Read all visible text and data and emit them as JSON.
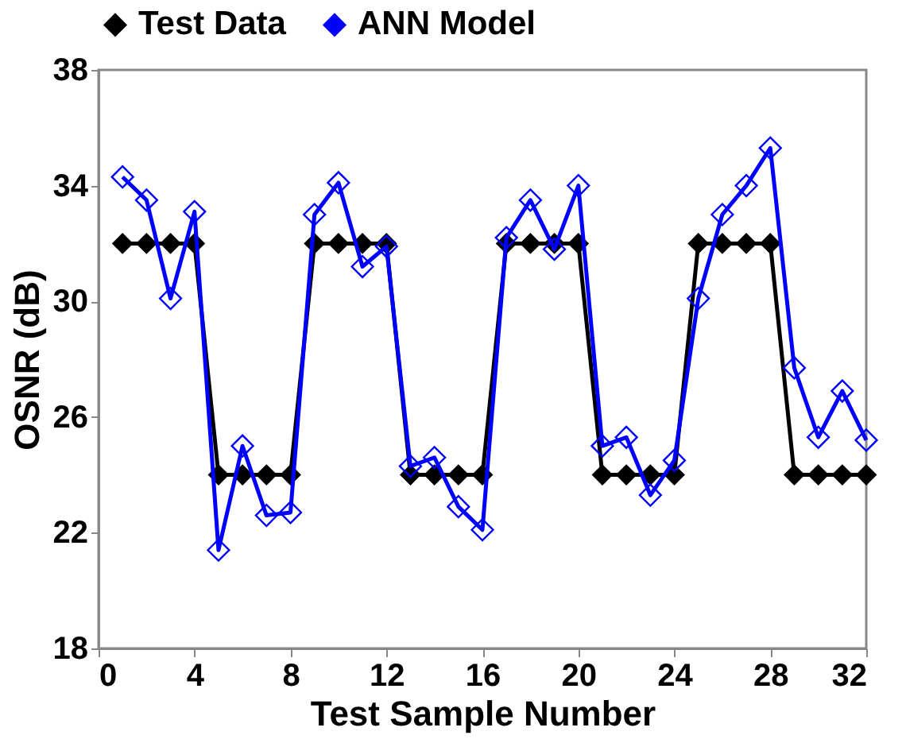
{
  "chart_data": {
    "type": "line",
    "xlabel": "Test Sample Number",
    "ylabel": "OSNR (dB)",
    "x": [
      1,
      2,
      3,
      4,
      5,
      6,
      7,
      8,
      9,
      10,
      11,
      12,
      13,
      14,
      15,
      16,
      17,
      18,
      19,
      20,
      21,
      22,
      23,
      24,
      25,
      26,
      27,
      28,
      29,
      30,
      31,
      32
    ],
    "series": [
      {
        "name": "Test Data",
        "color": "#000000",
        "values": [
          32,
          32,
          32,
          32,
          24,
          24,
          24,
          24,
          32,
          32,
          32,
          32,
          24,
          24,
          24,
          24,
          32,
          32,
          32,
          32,
          24,
          24,
          24,
          24,
          32,
          32,
          32,
          32,
          24,
          24,
          24,
          24
        ]
      },
      {
        "name": "ANN Model",
        "color": "#0000ff",
        "values": [
          34.3,
          33.5,
          30.1,
          33.1,
          21.4,
          25.0,
          22.6,
          22.7,
          33.0,
          34.1,
          31.2,
          31.9,
          24.3,
          24.6,
          22.9,
          22.1,
          32.2,
          33.5,
          31.8,
          34.0,
          25.0,
          25.3,
          23.3,
          24.5,
          30.1,
          33.0,
          34.0,
          35.3,
          27.7,
          25.3,
          26.9,
          25.2
        ]
      }
    ],
    "xlim": [
      0,
      32
    ],
    "xticks": [
      0,
      4,
      8,
      12,
      16,
      20,
      24,
      28,
      32
    ],
    "ylim": [
      18,
      38
    ],
    "yticks": [
      18,
      22,
      26,
      30,
      34,
      38
    ],
    "grid": false,
    "legend": "top",
    "marker": "diamond",
    "line_style": "solid"
  }
}
